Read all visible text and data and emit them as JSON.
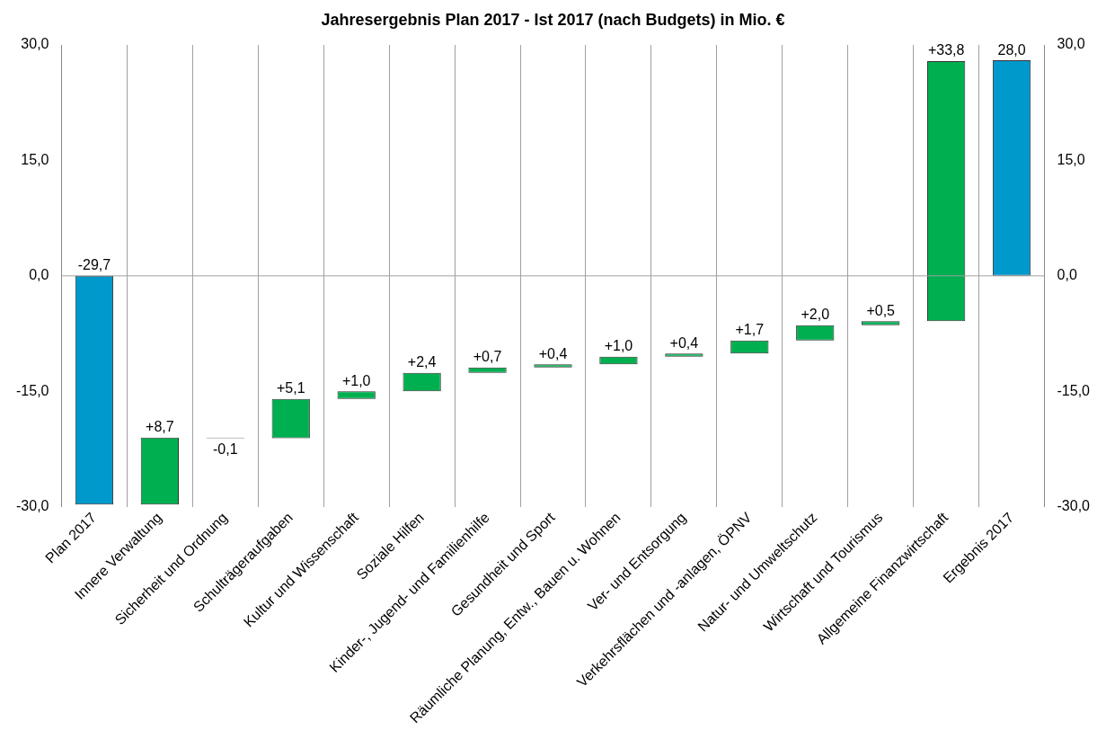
{
  "chart_data": {
    "type": "bar",
    "title": "Jahresergebnis Plan 2017 - Ist 2017 (nach Budgets) in Mio. €",
    "categories": [
      "Plan 2017",
      "Innere Verwaltung",
      "Sicherheit und Ordnung",
      "Schulträgeraufgaben",
      "Kultur und Wissenschaft",
      "Soziale Hilfen",
      "Kinder-, Jugend- und Familienhilfe",
      "Gesundheit und Sport",
      "Räumliche Planung, Entw., Bauen u. Wohnen",
      "Ver- und Entsorgung",
      "Verkehrsflächen und -anlagen, ÖPNV",
      "Natur- und Umweltschutz",
      "Wirtschaft und Tourismus",
      "Allgemeine Finanzwirtschaft",
      "Ergebnis 2017"
    ],
    "values": [
      -29.7,
      8.7,
      -0.1,
      5.1,
      1.0,
      2.4,
      0.7,
      0.4,
      1.0,
      0.4,
      1.7,
      2.0,
      0.5,
      33.8,
      28.0
    ],
    "base": [
      0,
      -29.7,
      -21.0,
      -21.1,
      -16.0,
      -15.0,
      -12.6,
      -11.9,
      -11.5,
      -10.5,
      -10.1,
      -8.4,
      -6.4,
      -5.9,
      0
    ],
    "colors": [
      "#0099cc",
      "#00b050",
      "#333333",
      "#00b050",
      "#00b050",
      "#00b050",
      "#00b050",
      "#00b050",
      "#00b050",
      "#00b050",
      "#00b050",
      "#00b050",
      "#00b050",
      "#00b050",
      "#0099cc"
    ],
    "value_labels": [
      "-29,7",
      "+8,7",
      "-0,1",
      "+5,1",
      "+1,0",
      "+2,4",
      "+0,7",
      "+0,4",
      "+1,0",
      "+0,4",
      "+1,7",
      "+2,0",
      "+0,5",
      "+33,8",
      "28,0"
    ],
    "ylim": [
      -30,
      30
    ],
    "yticks": [
      {
        "value": -30,
        "label": "-30,0"
      },
      {
        "value": -15,
        "label": "-15,0"
      },
      {
        "value": 0,
        "label": "0,0"
      },
      {
        "value": 15,
        "label": "15,0"
      },
      {
        "value": 30,
        "label": "30,0"
      }
    ],
    "y2lim": [
      -30,
      30
    ],
    "y2ticks": [
      {
        "value": -30,
        "label": "-30,0"
      },
      {
        "value": -15,
        "label": "-15,0"
      },
      {
        "value": 0,
        "label": "0,0"
      },
      {
        "value": 15,
        "label": "15,0"
      },
      {
        "value": 30,
        "label": "30,0"
      }
    ],
    "ref_lines": [
      {
        "axis": "y",
        "value": 0,
        "color": "#a0a0a0"
      }
    ],
    "grid": "x",
    "legend": false
  }
}
